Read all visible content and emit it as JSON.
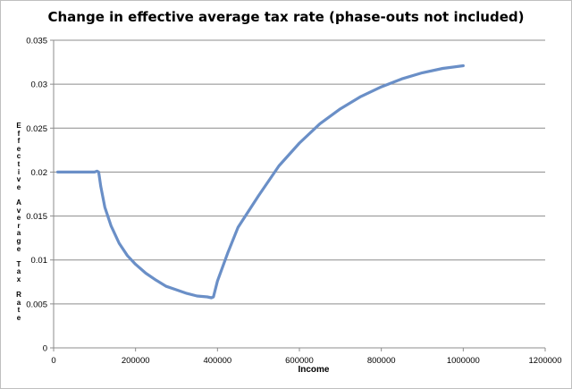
{
  "chart_data": {
    "type": "line",
    "title": "Change in effective average tax rate (phase-outs not included)",
    "xlabel": "Income",
    "ylabel": "Effective Average Tax Rate",
    "xlim": [
      0,
      1200000
    ],
    "ylim": [
      0,
      0.035
    ],
    "xticks": [
      "0",
      "200000",
      "400000",
      "600000",
      "800000",
      "1000000",
      "1200000"
    ],
    "yticks": [
      "0",
      "0.005",
      "0.01",
      "0.015",
      "0.02",
      "0.025",
      "0.03",
      "0.035"
    ],
    "grid": "horizontal",
    "legend": "none",
    "series_color": "#6a8fc7",
    "series": [
      {
        "x": [
          10000,
          50000,
          100000,
          106000,
          110000,
          115000,
          125000,
          140000,
          160000,
          180000,
          200000,
          225000,
          250000,
          275000,
          300000,
          325000,
          350000,
          375000,
          385000,
          390000,
          400000,
          425000,
          450000,
          500000,
          550000,
          600000,
          650000,
          700000,
          750000,
          800000,
          850000,
          900000,
          950000,
          1000000
        ],
        "y": [
          0.02,
          0.02,
          0.02,
          0.0201,
          0.02,
          0.0184,
          0.016,
          0.0139,
          0.0119,
          0.0105,
          0.0095,
          0.0085,
          0.0077,
          0.007,
          0.0066,
          0.0062,
          0.0059,
          0.0058,
          0.0057,
          0.0058,
          0.0076,
          0.0108,
          0.0137,
          0.0173,
          0.0207,
          0.0233,
          0.0255,
          0.0272,
          0.0286,
          0.0297,
          0.0306,
          0.0313,
          0.0318,
          0.0321
        ]
      }
    ]
  }
}
